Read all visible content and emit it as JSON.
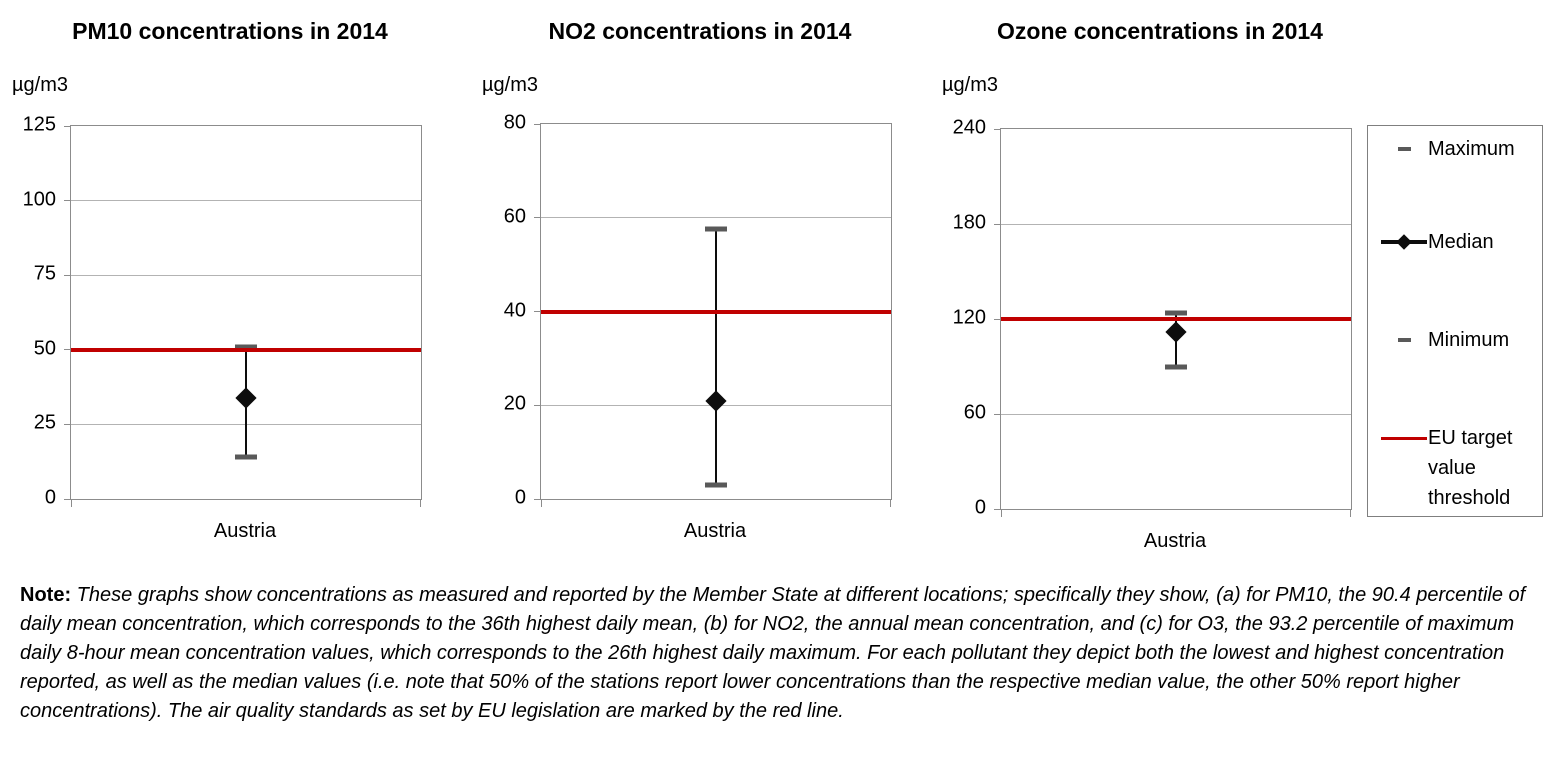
{
  "colors": {
    "eu_target_line": "#C00000",
    "max_min_marker": "#595959",
    "median_marker": "#0d0d0d",
    "axis_line": "#8c8c8c",
    "gridline": "#b3b3b3"
  },
  "chart_data": [
    {
      "type": "scatter",
      "title": "PM10 concentrations in 2014",
      "ylabel": "µg/m3",
      "xlabel": "",
      "categories": [
        "Austria"
      ],
      "series": [
        {
          "name": "Maximum",
          "values": [
            51
          ]
        },
        {
          "name": "Median",
          "values": [
            34
          ]
        },
        {
          "name": "Minimum",
          "values": [
            14
          ]
        }
      ],
      "eu_target_value": 50,
      "ylim": [
        0,
        125
      ],
      "yticks": [
        0,
        25,
        50,
        75,
        100,
        125
      ],
      "grid": true,
      "legend_position": "right"
    },
    {
      "type": "scatter",
      "title": "NO2 concentrations in 2014",
      "ylabel": "µg/m3",
      "xlabel": "",
      "categories": [
        "Austria"
      ],
      "series": [
        {
          "name": "Maximum",
          "values": [
            57.5
          ]
        },
        {
          "name": "Median",
          "values": [
            21
          ]
        },
        {
          "name": "Minimum",
          "values": [
            3
          ]
        }
      ],
      "eu_target_value": 40,
      "ylim": [
        0,
        80
      ],
      "yticks": [
        0,
        20,
        40,
        60,
        80
      ],
      "grid": true,
      "legend_position": "right"
    },
    {
      "type": "scatter",
      "title": "Ozone concentrations in 2014",
      "ylabel": "µg/m3",
      "xlabel": "",
      "categories": [
        "Austria"
      ],
      "series": [
        {
          "name": "Maximum",
          "values": [
            124
          ]
        },
        {
          "name": "Median",
          "values": [
            112
          ]
        },
        {
          "name": "Minimum",
          "values": [
            90
          ]
        }
      ],
      "eu_target_value": 120,
      "ylim": [
        0,
        240
      ],
      "yticks": [
        0,
        60,
        120,
        180,
        240
      ],
      "grid": true,
      "legend_position": "right"
    }
  ],
  "legend": {
    "items": [
      {
        "label": "Maximum",
        "marker": "dash-gray"
      },
      {
        "label": "Median",
        "marker": "line-diamond-black"
      },
      {
        "label": "Minimum",
        "marker": "dash-gray"
      },
      {
        "label": "EU target value threshold",
        "marker": "line-red"
      }
    ]
  },
  "note": {
    "label": "Note:",
    "text": "These graphs show concentrations as measured and reported by the Member State at different locations; specifically they show, (a) for PM10, the 90.4 percentile of daily mean concentration, which corresponds to the 36th highest daily mean, (b) for NO2, the annual mean concentration, and (c) for O3, the 93.2 percentile of maximum daily 8-hour mean concentration values, which corresponds to the 26th highest daily maximum. For each pollutant they depict both the lowest and highest concentration reported, as well as the median values (i.e. note that 50% of the stations report lower concentrations than the respective median value, the other 50% report higher concentrations). The air quality standards as set by EU legislation are marked by the red line."
  }
}
